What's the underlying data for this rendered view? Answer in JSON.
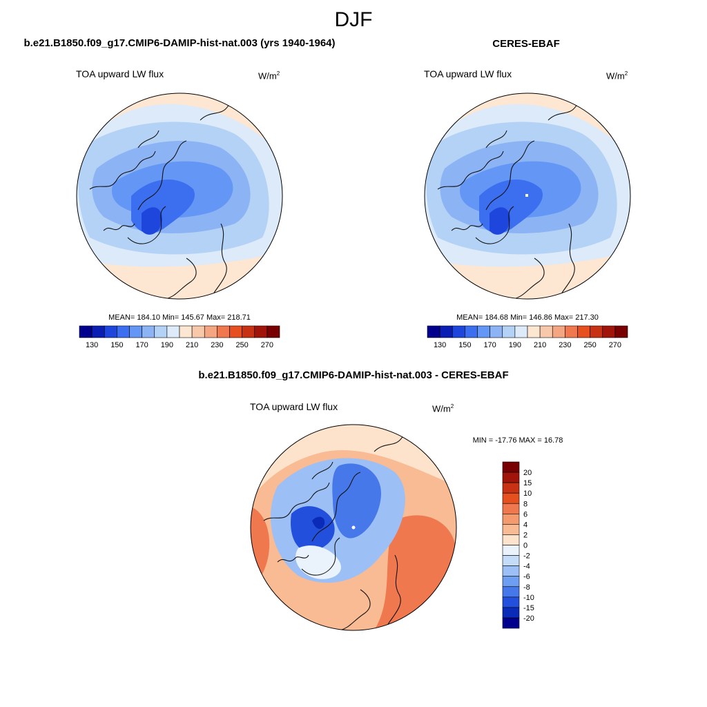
{
  "figure": {
    "title": "DJF"
  },
  "panels": [
    {
      "title": "b.e21.B1850.f09_g17.CMIP6-DAMIP-hist-nat.003 (yrs 1940-1964)",
      "subtitle": "TOA upward LW flux",
      "units": "W/m",
      "units_sup": "2",
      "stats": "MEAN= 184.10  Min= 145.67  Max= 218.71"
    },
    {
      "title": "CERES-EBAF",
      "subtitle": "TOA upward LW flux",
      "units": "W/m",
      "units_sup": "2",
      "stats": "MEAN= 184.68  Min= 146.86  Max= 217.30"
    },
    {
      "title": "b.e21.B1850.f09_g17.CMIP6-DAMIP-hist-nat.003 - CERES-EBAF",
      "subtitle": "TOA upward LW flux",
      "units": "W/m",
      "units_sup": "2",
      "stats": "MIN = -17.76 MAX =  16.78"
    }
  ],
  "chart_data": [
    {
      "type": "heatmap",
      "projection": "north polar stereographic",
      "field": "TOA upward LW flux",
      "stats": {
        "mean": 184.1,
        "min": 145.67,
        "max": 218.71
      },
      "colorbar": {
        "orientation": "horizontal",
        "tick_labels": [
          "130",
          "150",
          "170",
          "190",
          "210",
          "230",
          "250",
          "270"
        ],
        "colors": [
          "#00008c",
          "#0a1eb4",
          "#1e46dc",
          "#3c6ef0",
          "#6496f5",
          "#8cb4f5",
          "#b4d2f5",
          "#dceafa",
          "#fde6d2",
          "#f8c8aa",
          "#f4a582",
          "#f0784f",
          "#e6501e",
          "#c83214",
          "#a0140a",
          "#780000"
        ]
      }
    },
    {
      "type": "heatmap",
      "projection": "north polar stereographic",
      "field": "TOA upward LW flux",
      "stats": {
        "mean": 184.68,
        "min": 146.86,
        "max": 217.3
      },
      "colorbar": {
        "orientation": "horizontal",
        "tick_labels": [
          "130",
          "150",
          "170",
          "190",
          "210",
          "230",
          "250",
          "270"
        ],
        "colors": [
          "#00008c",
          "#0a1eb4",
          "#1e46dc",
          "#3c6ef0",
          "#6496f5",
          "#8cb4f5",
          "#b4d2f5",
          "#dceafa",
          "#fde6d2",
          "#f8c8aa",
          "#f4a582",
          "#f0784f",
          "#e6501e",
          "#c83214",
          "#a0140a",
          "#780000"
        ]
      }
    },
    {
      "type": "heatmap",
      "projection": "north polar stereographic",
      "field": "TOA upward LW flux difference",
      "stats": {
        "min": -17.76,
        "max": 16.78
      },
      "colorbar": {
        "orientation": "vertical",
        "tick_labels": [
          "20",
          "15",
          "10",
          "8",
          "6",
          "4",
          "2",
          "0",
          "-2",
          "-4",
          "-6",
          "-8",
          "-10",
          "-15",
          "-20"
        ],
        "colors": [
          "#780000",
          "#a0140a",
          "#c83214",
          "#e6501e",
          "#f0784f",
          "#f49a6c",
          "#f8bb93",
          "#fde2cc",
          "#eaf2fb",
          "#c4dcf8",
          "#9cc0f5",
          "#6e9ef2",
          "#4678ea",
          "#2250dc",
          "#0a2ab8",
          "#00008c"
        ]
      }
    }
  ]
}
